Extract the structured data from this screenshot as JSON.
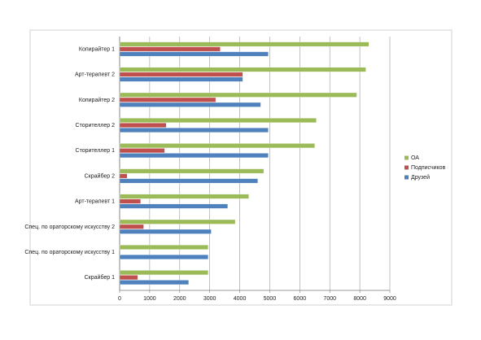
{
  "chart_data": {
    "type": "bar",
    "orientation": "horizontal",
    "categories": [
      "Копирайтер 1",
      "Арт-терапевт 2",
      "Копирайтер 2",
      "Сторителлер 2",
      "Сторителлер 1",
      "Скрайбер 2",
      "Арт-терапевт 1",
      "Спец. по ораторскому искусству 2",
      "Спец. по ораторскому искусству 1",
      "Скрайбер 1"
    ],
    "series": [
      {
        "name": "ОА",
        "color": "#9bbb59",
        "values": [
          8300,
          8200,
          7900,
          6550,
          6500,
          4800,
          4300,
          3850,
          2950,
          2950
        ]
      },
      {
        "name": "Подписчиков",
        "color": "#c0504d",
        "values": [
          3350,
          4100,
          3200,
          1550,
          1500,
          250,
          700,
          800,
          0,
          600
        ]
      },
      {
        "name": "Друзей",
        "color": "#4f81bd",
        "values": [
          4950,
          4100,
          4700,
          4950,
          4950,
          4600,
          3600,
          3050,
          2950,
          2300
        ]
      }
    ],
    "xlim": [
      0,
      9000
    ],
    "xticks": [
      0,
      1000,
      2000,
      3000,
      4000,
      5000,
      6000,
      7000,
      8000,
      9000
    ],
    "grid": true,
    "legend": "right"
  }
}
